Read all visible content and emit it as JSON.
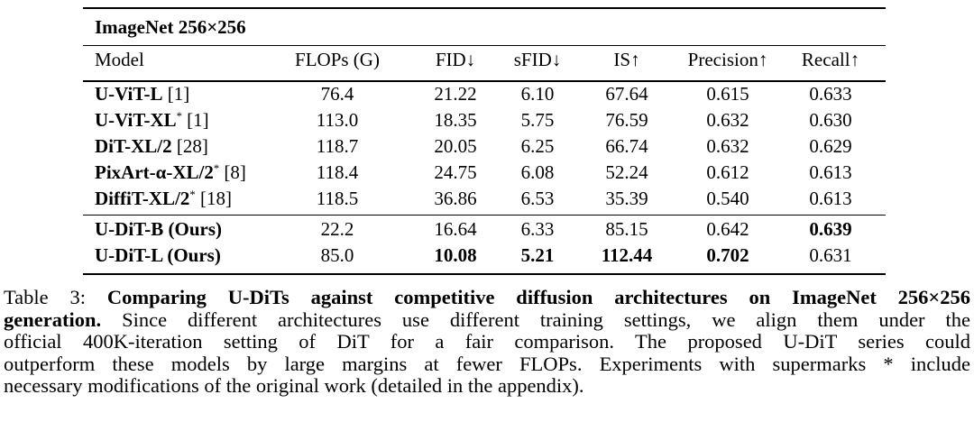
{
  "table": {
    "title": "ImageNet 256×256",
    "columns": [
      "Model",
      "FLOPs (G)",
      "FID↓",
      "sFID↓",
      "IS↑",
      "Precision↑",
      "Recall↑"
    ],
    "group1": [
      {
        "name": "U-ViT-L",
        "sup": "",
        "ref": " [1]",
        "flops": "76.4",
        "fid": "21.22",
        "sfid": "6.10",
        "is": "67.64",
        "precision": "0.615",
        "recall": "0.633"
      },
      {
        "name": "U-ViT-XL",
        "sup": "*",
        "ref": " [1]",
        "flops": "113.0",
        "fid": "18.35",
        "sfid": "5.75",
        "is": "76.59",
        "precision": "0.632",
        "recall": "0.630"
      },
      {
        "name": "DiT-XL/2",
        "sup": "",
        "ref": " [28]",
        "flops": "118.7",
        "fid": "20.05",
        "sfid": "6.25",
        "is": "66.74",
        "precision": "0.632",
        "recall": "0.629"
      },
      {
        "name": "PixArt-α-XL/2",
        "sup": "*",
        "ref": " [8]",
        "flops": "118.4",
        "fid": "24.75",
        "sfid": "6.08",
        "is": "52.24",
        "precision": "0.612",
        "recall": "0.613"
      },
      {
        "name": "DiffiT-XL/2",
        "sup": "*",
        "ref": " [18]",
        "flops": "118.5",
        "fid": "36.86",
        "sfid": "6.53",
        "is": "35.39",
        "precision": "0.540",
        "recall": "0.613"
      }
    ],
    "group2": [
      {
        "name": "U-DiT-B (Ours)",
        "flops": "22.2",
        "fid": "16.64",
        "sfid": "6.33",
        "is": "85.15",
        "precision": "0.642",
        "recall": "0.639",
        "bold": [
          "recall"
        ]
      },
      {
        "name": "U-DiT-L (Ours)",
        "flops": "85.0",
        "fid": "10.08",
        "sfid": "5.21",
        "is": "112.44",
        "precision": "0.702",
        "recall": "0.631",
        "bold": [
          "fid",
          "sfid",
          "is",
          "precision"
        ]
      }
    ]
  },
  "caption": {
    "label": "Table 3: ",
    "bold_part_line1": "Comparing U-DiTs against competitive diffusion architectures on ImageNet 256×256",
    "bold_part_line2": "generation.",
    "line2_rest": " Since different architectures use different training settings, we align them under the",
    "line3": "official 400K-iteration setting of DiT for a fair comparison.  The proposed U-DiT series could",
    "line4": "outperform these models by large margins at fewer FLOPs. Experiments with supermarks * include",
    "line5": "necessary modifications of the original work (detailed in the appendix)."
  }
}
